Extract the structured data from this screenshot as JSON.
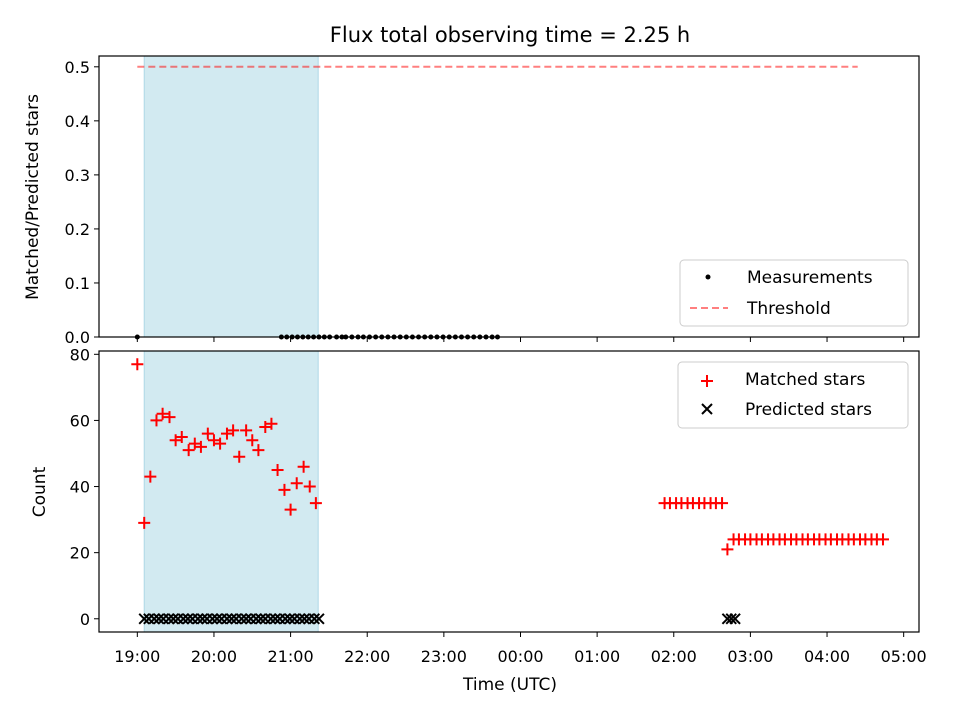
{
  "title": "Flux total observing time = 2.25 h",
  "colors": {
    "shade": "#add8e6",
    "threshold": "#ff0000",
    "matched": "#ff0000",
    "predicted": "#000000",
    "measurement": "#000000"
  },
  "chart_data": [
    {
      "type": "scatter",
      "title": "Flux total observing time = 2.25 h",
      "xlabel": "",
      "ylabel": "Matched/Predicted stars",
      "x_unit": "hours since 19:00 UTC",
      "xlim": [
        -0.5,
        10.2
      ],
      "ylim": [
        0.0,
        0.52
      ],
      "yticks": [
        0.0,
        0.1,
        0.2,
        0.3,
        0.4,
        0.5
      ],
      "ytick_labels": [
        "0.0",
        "0.1",
        "0.2",
        "0.3",
        "0.4",
        "0.5"
      ],
      "shaded_span": [
        0.09,
        2.36
      ],
      "legend_position": "lower-right",
      "legend": [
        "Measurements",
        "Threshold"
      ],
      "threshold": {
        "name": "Threshold",
        "x_start": 0.0,
        "x_end": 9.4,
        "y": 0.5,
        "style": "dashed"
      },
      "series": [
        {
          "name": "Measurements",
          "marker": "dot",
          "x": [
            0.0,
            1.88,
            1.95,
            2.02,
            2.09,
            2.16,
            2.23,
            2.3,
            2.37,
            2.44,
            2.51,
            2.6,
            2.67,
            2.72,
            2.8,
            2.88,
            2.95,
            3.03,
            3.11,
            3.19,
            3.27,
            3.35,
            3.43,
            3.51,
            3.59,
            3.67,
            3.75,
            3.83,
            3.91,
            3.99,
            4.07,
            4.15,
            4.23,
            4.31,
            4.39,
            4.47,
            4.55,
            4.63,
            4.7
          ],
          "y": [
            0,
            0,
            0,
            0,
            0,
            0,
            0,
            0,
            0,
            0,
            0,
            0,
            0,
            0,
            0,
            0,
            0,
            0,
            0,
            0,
            0,
            0,
            0,
            0,
            0,
            0,
            0,
            0,
            0,
            0,
            0,
            0,
            0,
            0,
            0,
            0,
            0,
            0,
            0
          ]
        }
      ]
    },
    {
      "type": "scatter",
      "xlabel": "Time (UTC)",
      "ylabel": "Count",
      "x_unit": "hours since 19:00 UTC",
      "xlim": [
        -0.5,
        10.2
      ],
      "ylim": [
        -4,
        81
      ],
      "yticks": [
        0,
        20,
        40,
        60,
        80
      ],
      "ytick_labels": [
        "0",
        "20",
        "40",
        "60",
        "80"
      ],
      "xticks": [
        0,
        1,
        2,
        3,
        4,
        5,
        6,
        7,
        8,
        9,
        10
      ],
      "xtick_labels": [
        "19:00",
        "20:00",
        "21:00",
        "22:00",
        "23:00",
        "00:00",
        "01:00",
        "02:00",
        "03:00",
        "04:00",
        "05:00"
      ],
      "shaded_span": [
        0.09,
        2.36
      ],
      "legend_position": "top-right",
      "legend": [
        "Matched stars",
        "Predicted stars"
      ],
      "series": [
        {
          "name": "Matched stars",
          "marker": "plus",
          "x": [
            0.0,
            0.09,
            0.17,
            0.25,
            0.33,
            0.42,
            0.5,
            0.58,
            0.67,
            0.75,
            0.83,
            0.92,
            1.0,
            1.08,
            1.17,
            1.25,
            1.33,
            1.42,
            1.5,
            1.58,
            1.67,
            1.75,
            1.83,
            1.92,
            2.0,
            2.08,
            2.17,
            2.25,
            2.33,
            6.88,
            6.95,
            7.03,
            7.1,
            7.18,
            7.25,
            7.33,
            7.4,
            7.48,
            7.55,
            7.63,
            7.7,
            7.78,
            7.85,
            7.93,
            8.0,
            8.08,
            8.15,
            8.23,
            8.3,
            8.38,
            8.45,
            8.53,
            8.6,
            8.68,
            8.75,
            8.83,
            8.9,
            8.98,
            9.05,
            9.13,
            9.2,
            9.28,
            9.35,
            9.43,
            9.5,
            9.58,
            9.65,
            9.73
          ],
          "y": [
            77,
            29,
            43,
            60,
            62,
            61,
            54,
            55,
            51,
            53,
            52,
            56,
            54,
            53,
            56,
            57,
            49,
            57,
            54,
            51,
            58,
            59,
            45,
            39,
            33,
            41,
            46,
            40,
            35,
            35,
            35,
            35,
            35,
            35,
            35,
            35,
            35,
            35,
            35,
            35,
            21,
            24,
            24,
            24,
            24,
            24,
            24,
            24,
            24,
            24,
            24,
            24,
            24,
            24,
            24,
            24,
            24,
            24,
            24,
            24,
            24,
            24,
            24,
            24,
            24,
            24,
            24,
            24
          ]
        },
        {
          "name": "Predicted stars",
          "marker": "x",
          "x": [
            0.09,
            0.15,
            0.22,
            0.28,
            0.34,
            0.41,
            0.47,
            0.53,
            0.6,
            0.66,
            0.72,
            0.79,
            0.85,
            0.91,
            0.98,
            1.04,
            1.1,
            1.17,
            1.23,
            1.29,
            1.36,
            1.42,
            1.48,
            1.55,
            1.61,
            1.67,
            1.74,
            1.8,
            1.86,
            1.93,
            1.99,
            2.05,
            2.12,
            2.18,
            2.24,
            2.31,
            2.37,
            7.7,
            7.75,
            7.8
          ],
          "y": [
            0,
            0,
            0,
            0,
            0,
            0,
            0,
            0,
            0,
            0,
            0,
            0,
            0,
            0,
            0,
            0,
            0,
            0,
            0,
            0,
            0,
            0,
            0,
            0,
            0,
            0,
            0,
            0,
            0,
            0,
            0,
            0,
            0,
            0,
            0,
            0,
            0,
            0,
            0,
            0
          ]
        }
      ]
    }
  ]
}
